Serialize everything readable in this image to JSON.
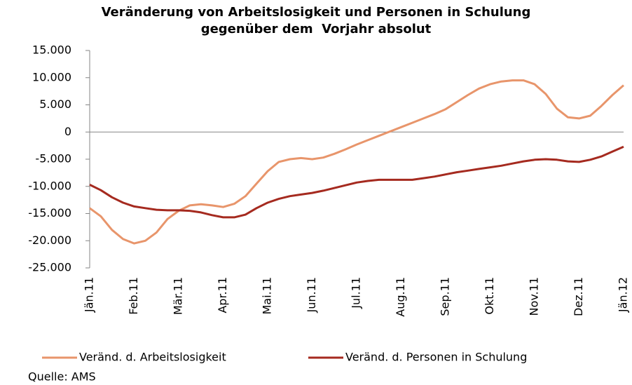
{
  "chart_data": {
    "type": "line",
    "title": "Veränderung von Arbeitslosigkeit und Personen in Schulung gegenüber dem  Vorjahr absolut",
    "source": "Quelle: AMS",
    "categories": [
      "Jän.11",
      null,
      null,
      null,
      "Feb.11",
      null,
      null,
      null,
      "Mär.11",
      null,
      null,
      null,
      "Apr.11",
      null,
      null,
      null,
      "Mai.11",
      null,
      null,
      null,
      "Jun.11",
      null,
      null,
      null,
      "Jul.11",
      null,
      null,
      null,
      "Aug.11",
      null,
      null,
      null,
      "Sep.11",
      null,
      null,
      null,
      "Okt.11",
      null,
      null,
      null,
      "Nov.11",
      null,
      null,
      null,
      "Dez.11",
      null,
      null,
      null,
      "Jän.12"
    ],
    "series": [
      {
        "name": "Veränd. d. Arbeitslosigkeit",
        "color": "#e8956b",
        "values": [
          -14000,
          -15500,
          -18000,
          -19700,
          -20500,
          -20000,
          -18500,
          -16000,
          -14500,
          -13500,
          -13300,
          -13500,
          -13800,
          -13200,
          -11800,
          -9500,
          -7200,
          -5500,
          -5000,
          -4800,
          -5000,
          -4700,
          -4000,
          -3200,
          -2300,
          -1500,
          -700,
          100,
          900,
          1700,
          2500,
          3300,
          4200,
          5500,
          6800,
          8000,
          8800,
          9300,
          9500,
          9500,
          8800,
          7000,
          4300,
          2700,
          2500,
          3000,
          4800,
          6800,
          8600
        ]
      },
      {
        "name": "Veränd. d.  Personen in Schulung",
        "color": "#a52a1f",
        "values": [
          -9700,
          -10700,
          -12000,
          -13000,
          -13700,
          -14000,
          -14300,
          -14400,
          -14400,
          -14500,
          -14800,
          -15300,
          -15700,
          -15700,
          -15200,
          -14000,
          -13000,
          -12300,
          -11800,
          -11500,
          -11200,
          -10800,
          -10300,
          -9800,
          -9300,
          -9000,
          -8800,
          -8800,
          -8800,
          -8800,
          -8500,
          -8200,
          -7800,
          -7400,
          -7100,
          -6800,
          -6500,
          -6200,
          -5800,
          -5400,
          -5100,
          -5000,
          -5100,
          -5400,
          -5500,
          -5100,
          -4500,
          -3600,
          -2700
        ]
      }
    ],
    "ylim": [
      -25000,
      15000
    ],
    "yticks": [
      {
        "value": 15000,
        "label": "15.000"
      },
      {
        "value": 10000,
        "label": "10.000"
      },
      {
        "value": 5000,
        "label": "5.000"
      },
      0,
      {
        "value": -5000,
        "label": "-5.000"
      },
      {
        "value": -10000,
        "label": "-10.000"
      },
      {
        "value": -15000,
        "label": "-15.000"
      },
      {
        "value": -20000,
        "label": "-20.000"
      },
      {
        "value": -25000,
        "label": "-25.000"
      }
    ],
    "legend": "bottom"
  }
}
